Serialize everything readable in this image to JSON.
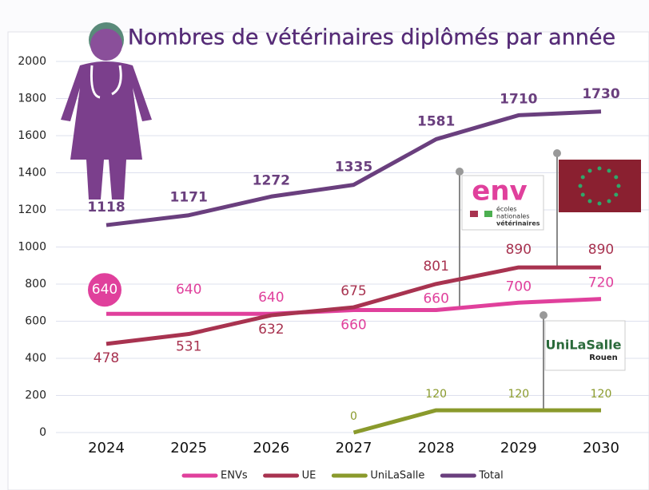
{
  "chart_data": {
    "type": "line",
    "title": "Nombres de vétérinaires diplômés par année",
    "categories": [
      "2024",
      "2025",
      "2026",
      "2027",
      "2028",
      "2029",
      "2030"
    ],
    "series": [
      {
        "name": "ENVs",
        "color": "#e0409c",
        "values": [
          640,
          640,
          640,
          660,
          660,
          700,
          720
        ]
      },
      {
        "name": "UE",
        "color": "#a83350",
        "values": [
          478,
          531,
          632,
          675,
          801,
          890,
          890
        ]
      },
      {
        "name": "UniLaSalle",
        "color": "#8a9a2c",
        "values": [
          null,
          null,
          null,
          0,
          120,
          120,
          120
        ]
      },
      {
        "name": "Total",
        "color": "#6a3f7e",
        "values": [
          1118,
          1171,
          1272,
          1335,
          1581,
          1710,
          1730
        ]
      }
    ],
    "ylim": [
      0,
      2000
    ],
    "yticks": [
      0,
      200,
      400,
      600,
      800,
      1000,
      1200,
      1400,
      1600,
      1800,
      2000
    ],
    "grid": true,
    "legend": "bottom",
    "annotations": [
      "env",
      "écoles",
      "nationales",
      "vétérinaires",
      "UniLaSalle",
      "Rouen"
    ]
  }
}
